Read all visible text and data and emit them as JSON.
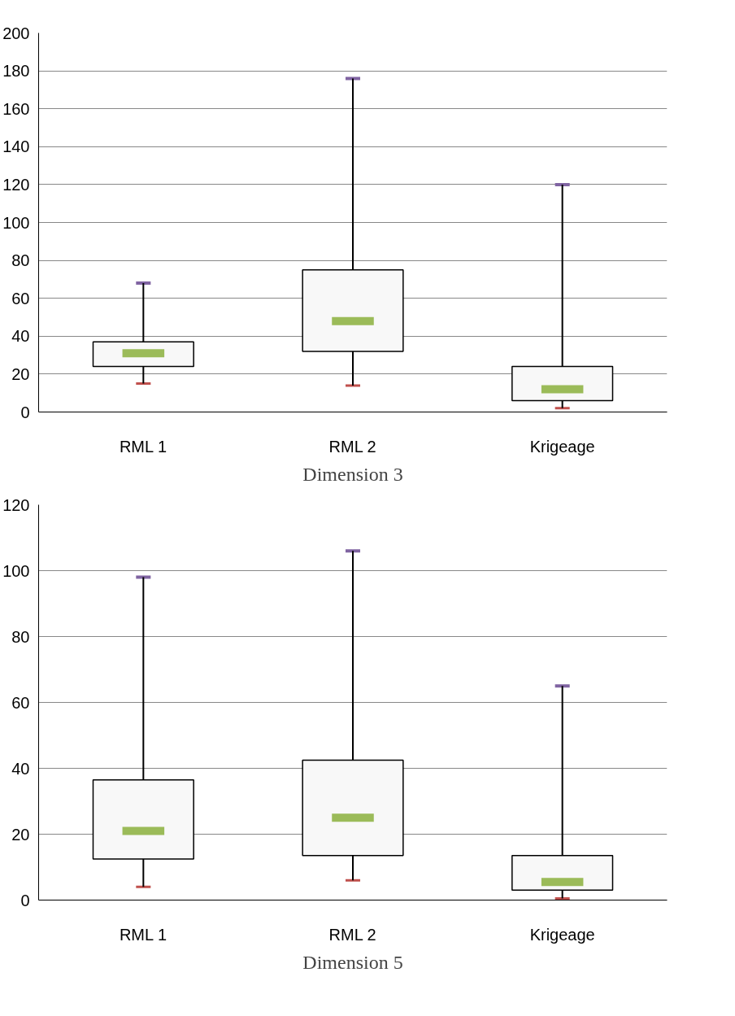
{
  "chart_data": [
    {
      "type": "box",
      "title": "Dimension 3",
      "categories": [
        "RML 1",
        "RML 2",
        "Krigeage"
      ],
      "boxes": [
        {
          "low": 15,
          "q1": 24,
          "median": 31,
          "q3": 37,
          "high": 68
        },
        {
          "low": 14,
          "q1": 32,
          "median": 48,
          "q3": 75,
          "high": 176
        },
        {
          "low": 2,
          "q1": 6,
          "median": 12,
          "q3": 24,
          "high": 120
        }
      ],
      "ylim": [
        0,
        200
      ],
      "yticks": [
        0,
        20,
        40,
        60,
        80,
        100,
        120,
        140,
        160,
        180,
        200
      ],
      "grid": "y"
    },
    {
      "type": "box",
      "title": "Dimension 5",
      "categories": [
        "RML 1",
        "RML 2",
        "Krigeage"
      ],
      "boxes": [
        {
          "low": 4,
          "q1": 12.5,
          "median": 21,
          "q3": 36.5,
          "high": 98
        },
        {
          "low": 6,
          "q1": 13.5,
          "median": 25,
          "q3": 42.5,
          "high": 106
        },
        {
          "low": 0.5,
          "q1": 3,
          "median": 5.5,
          "q3": 13.5,
          "high": 65
        }
      ],
      "ylim": [
        0,
        120
      ],
      "yticks": [
        0,
        20,
        40,
        60,
        80,
        100,
        120
      ],
      "grid": "y"
    }
  ]
}
